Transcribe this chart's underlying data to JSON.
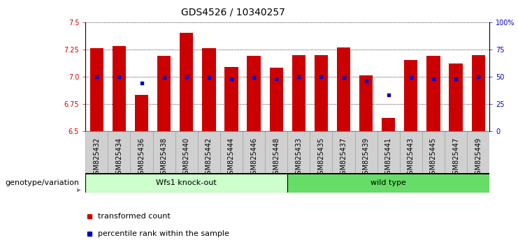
{
  "title": "GDS4526 / 10340257",
  "samples": [
    "GSM825432",
    "GSM825434",
    "GSM825436",
    "GSM825438",
    "GSM825440",
    "GSM825442",
    "GSM825444",
    "GSM825446",
    "GSM825448",
    "GSM825433",
    "GSM825435",
    "GSM825437",
    "GSM825439",
    "GSM825441",
    "GSM825443",
    "GSM825445",
    "GSM825447",
    "GSM825449"
  ],
  "bar_values": [
    7.26,
    7.28,
    6.83,
    7.19,
    7.4,
    7.26,
    7.09,
    7.19,
    7.08,
    7.2,
    7.2,
    7.27,
    7.01,
    6.62,
    7.15,
    7.19,
    7.12,
    7.2
  ],
  "dot_values": [
    50,
    50,
    44,
    49,
    50,
    49,
    48,
    49,
    48,
    50,
    50,
    49,
    46,
    33,
    49,
    48,
    48,
    50
  ],
  "ymin": 6.5,
  "ymax": 7.5,
  "yticks": [
    6.5,
    6.75,
    7.0,
    7.25,
    7.5
  ],
  "right_yticks": [
    0,
    25,
    50,
    75,
    100
  ],
  "right_ytick_labels": [
    "0",
    "25",
    "50",
    "75",
    "100%"
  ],
  "bar_color": "#CC0000",
  "dot_color": "#0000CC",
  "background_color": "#FFFFFF",
  "group1_label": "Wfs1 knock-out",
  "group2_label": "wild type",
  "group1_count": 9,
  "group2_count": 9,
  "group1_bg": "#CCFFCC",
  "group2_bg": "#66DD66",
  "xlabel_left": "genotype/variation",
  "legend_items": [
    "transformed count",
    "percentile rank within the sample"
  ],
  "title_fontsize": 10,
  "tick_fontsize": 7,
  "label_fontsize": 8,
  "xtick_fontsize": 7
}
